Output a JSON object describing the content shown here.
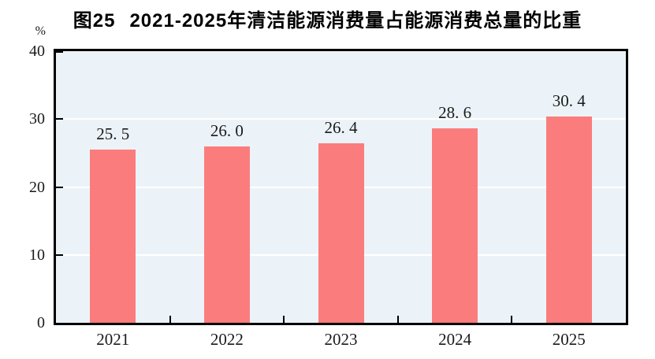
{
  "title": {
    "prefix": "图25",
    "text": "2021-2025年清洁能源消费量占能源消费总量的比重"
  },
  "colors": {
    "bar": "#FB7C7C",
    "plot_background": "#ECF3F8",
    "gridline": "#FFFFFF",
    "axis": "#000000",
    "text": "#1A1A1A"
  },
  "chart_data": {
    "type": "bar",
    "title": "图25 2021-2025年清洁能源消费量占能源消费总量的比重",
    "categories": [
      "2021",
      "2022",
      "2023",
      "2024",
      "2025"
    ],
    "values": [
      25.5,
      26.0,
      26.4,
      28.6,
      30.4
    ],
    "value_labels": [
      "25. 5",
      "26. 0",
      "26. 4",
      "28. 6",
      "30. 4"
    ],
    "xlabel": "",
    "ylabel": "%",
    "ylim": [
      0,
      40
    ],
    "y_ticks": [
      0,
      10,
      20,
      30,
      40
    ],
    "grid": true,
    "legend": "none"
  }
}
